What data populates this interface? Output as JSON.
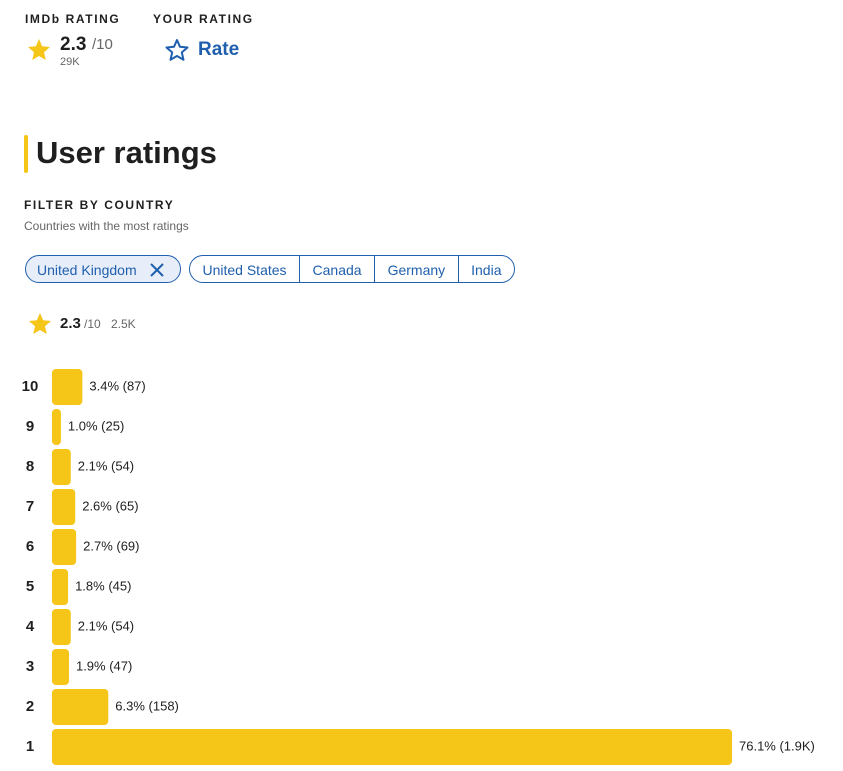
{
  "header": {
    "imdb_rating_label": "IMDb RATING",
    "imdb_rating": 2.3,
    "imdb_rating_scale": "/10",
    "imdb_votes": "29K",
    "your_rating_label": "YOUR RATING",
    "rate": "Rate"
  },
  "section_title": "User ratings",
  "filter": {
    "title": "FILTER BY COUNTRY",
    "subtitle": "Countries with the most ratings",
    "selected": "United Kingdom",
    "countries": [
      "United States",
      "Canada",
      "Germany",
      "India"
    ]
  },
  "country_rating": {
    "rating": 2.3,
    "scale": "/10",
    "votes": "2.5K"
  },
  "chart_data": {
    "type": "bar",
    "orientation": "horizontal",
    "color": "#f5c518",
    "categories": [
      "10",
      "9",
      "8",
      "7",
      "6",
      "5",
      "4",
      "3",
      "2",
      "1"
    ],
    "values": [
      3.4,
      1.0,
      2.1,
      2.6,
      2.7,
      1.8,
      2.1,
      1.9,
      6.3,
      76.1
    ],
    "value_labels": [
      "3.4% (87)",
      "1.0% (25)",
      "2.1% (54)",
      "2.6% (65)",
      "2.7% (69)",
      "1.8% (45)",
      "2.1% (54)",
      "1.9% (47)",
      "6.3% (158)",
      "76.1% (1.9K)"
    ],
    "xlim": [
      0,
      76.1
    ]
  }
}
